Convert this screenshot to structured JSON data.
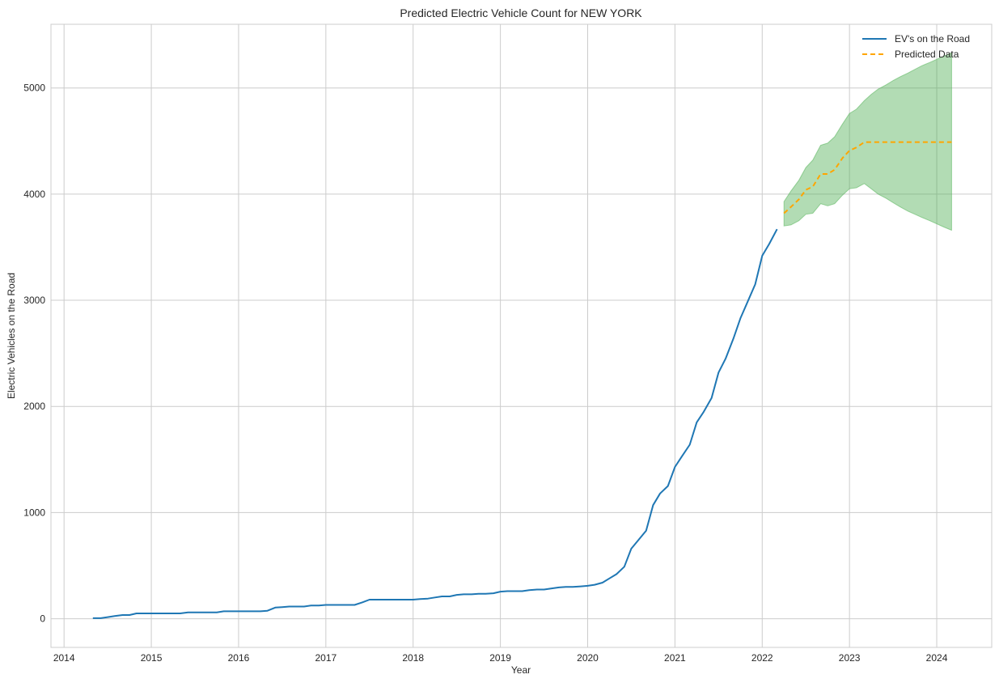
{
  "chart_data": {
    "type": "line",
    "title": "Predicted Electric Vehicle Count for NEW YORK",
    "xlabel": "Year",
    "ylabel": "Electric Vehicles on the Road",
    "xlim": [
      2013.85,
      2024.63
    ],
    "ylim": [
      -270,
      5600
    ],
    "xticks": [
      2014,
      2015,
      2016,
      2017,
      2018,
      2019,
      2020,
      2021,
      2022,
      2023,
      2024
    ],
    "xtick_labels": [
      "2014",
      "2015",
      "2016",
      "2017",
      "2018",
      "2019",
      "2020",
      "2021",
      "2022",
      "2023",
      "2024"
    ],
    "yticks": [
      0,
      1000,
      2000,
      3000,
      4000,
      5000
    ],
    "ytick_labels": [
      "0",
      "1000",
      "2000",
      "3000",
      "4000",
      "5000"
    ],
    "grid": true,
    "legend_position": "top-right",
    "colors": {
      "actual": "#1f77b4",
      "predicted": "#ffa500",
      "interval": "#4caf50"
    },
    "series": [
      {
        "name": "EV's on the Road",
        "style": "solid",
        "x": [
          2014.33,
          2014.42,
          2014.5,
          2014.58,
          2014.67,
          2014.75,
          2014.83,
          2014.92,
          2015.0,
          2015.08,
          2015.17,
          2015.25,
          2015.33,
          2015.42,
          2015.5,
          2015.58,
          2015.67,
          2015.75,
          2015.83,
          2015.92,
          2016.0,
          2016.08,
          2016.17,
          2016.25,
          2016.33,
          2016.42,
          2016.5,
          2016.58,
          2016.67,
          2016.75,
          2016.83,
          2016.92,
          2017.0,
          2017.08,
          2017.17,
          2017.25,
          2017.33,
          2017.42,
          2017.5,
          2017.58,
          2017.67,
          2017.75,
          2017.83,
          2017.92,
          2018.0,
          2018.08,
          2018.17,
          2018.25,
          2018.33,
          2018.42,
          2018.5,
          2018.58,
          2018.67,
          2018.75,
          2018.83,
          2018.92,
          2019.0,
          2019.08,
          2019.17,
          2019.25,
          2019.33,
          2019.42,
          2019.5,
          2019.58,
          2019.67,
          2019.75,
          2019.83,
          2019.92,
          2020.0,
          2020.08,
          2020.17,
          2020.25,
          2020.33,
          2020.42,
          2020.5,
          2020.58,
          2020.67,
          2020.75,
          2020.83,
          2020.92,
          2021.0,
          2021.08,
          2021.17,
          2021.25,
          2021.33,
          2021.42,
          2021.5,
          2021.58,
          2021.67,
          2021.75,
          2021.83,
          2021.92,
          2022.0,
          2022.08,
          2022.17
        ],
        "y": [
          5,
          5,
          15,
          25,
          35,
          35,
          50,
          50,
          50,
          50,
          50,
          50,
          50,
          60,
          60,
          60,
          60,
          60,
          70,
          70,
          70,
          70,
          70,
          70,
          75,
          105,
          110,
          115,
          115,
          115,
          125,
          125,
          130,
          130,
          130,
          130,
          130,
          155,
          180,
          180,
          180,
          180,
          180,
          180,
          180,
          185,
          190,
          200,
          210,
          210,
          225,
          230,
          230,
          235,
          235,
          240,
          255,
          260,
          260,
          260,
          270,
          275,
          275,
          285,
          295,
          300,
          300,
          305,
          310,
          320,
          340,
          380,
          420,
          490,
          660,
          740,
          830,
          1070,
          1180,
          1250,
          1430,
          1530,
          1640,
          1850,
          1950,
          2080,
          2320,
          2450,
          2640,
          2830,
          2980,
          3150,
          3420,
          3530,
          3670
        ]
      },
      {
        "name": "Predicted Data",
        "style": "dashed",
        "x": [
          2022.25,
          2022.33,
          2022.42,
          2022.5,
          2022.58,
          2022.67,
          2022.75,
          2022.83,
          2022.92,
          2023.0,
          2023.08,
          2023.17,
          2023.25,
          2023.33,
          2023.42,
          2023.5,
          2023.58,
          2023.67,
          2023.75,
          2023.83,
          2023.92,
          2024.0,
          2024.08,
          2024.17
        ],
        "y": [
          3820,
          3880,
          3950,
          4040,
          4070,
          4190,
          4190,
          4230,
          4340,
          4410,
          4440,
          4490,
          4490,
          4490,
          4490,
          4490,
          4490,
          4490,
          4490,
          4490,
          4490,
          4490,
          4490,
          4490
        ]
      }
    ],
    "interval": {
      "x": [
        2022.25,
        2022.33,
        2022.42,
        2022.5,
        2022.58,
        2022.67,
        2022.75,
        2022.83,
        2022.92,
        2023.0,
        2023.08,
        2023.17,
        2023.25,
        2023.33,
        2023.42,
        2023.5,
        2023.58,
        2023.67,
        2023.75,
        2023.83,
        2023.92,
        2024.0,
        2024.08,
        2024.17
      ],
      "upper": [
        3930,
        4030,
        4130,
        4250,
        4320,
        4460,
        4480,
        4540,
        4660,
        4760,
        4800,
        4880,
        4940,
        4990,
        5030,
        5070,
        5105,
        5140,
        5175,
        5210,
        5240,
        5270,
        5300,
        5330
      ],
      "lower": [
        3700,
        3710,
        3750,
        3810,
        3820,
        3910,
        3890,
        3910,
        3990,
        4050,
        4060,
        4100,
        4050,
        4000,
        3960,
        3920,
        3880,
        3840,
        3810,
        3780,
        3750,
        3720,
        3690,
        3660
      ]
    }
  }
}
